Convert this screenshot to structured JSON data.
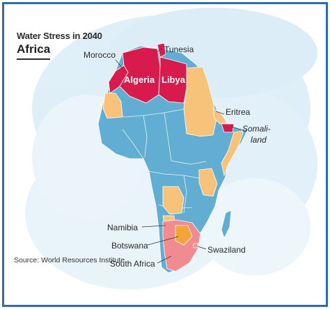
{
  "title": "Water Stress in 2040",
  "subtitle": "Africa",
  "source": "Source: World Resources Institute",
  "colors": {
    "frame": "#2d6bb3",
    "background_wash": "#cfe6f4",
    "low_stress": "#62aed3",
    "medium_stress": "#f7c27a",
    "high_stress": "#d81b4d",
    "south_africa": "#f08b8f",
    "botswana": "#f6a43a"
  },
  "labels": {
    "morocco": "Morocco",
    "tunesia": "Tunesia",
    "algeria": "Algeria",
    "libya": "Libya",
    "eritrea": "Eritrea",
    "somaliland_line1": "Somali-",
    "somaliland_line2": "land",
    "namibia": "Namibia",
    "botswana": "Botswana",
    "swaziland": "Swaziland",
    "south_africa": "South Africa"
  }
}
